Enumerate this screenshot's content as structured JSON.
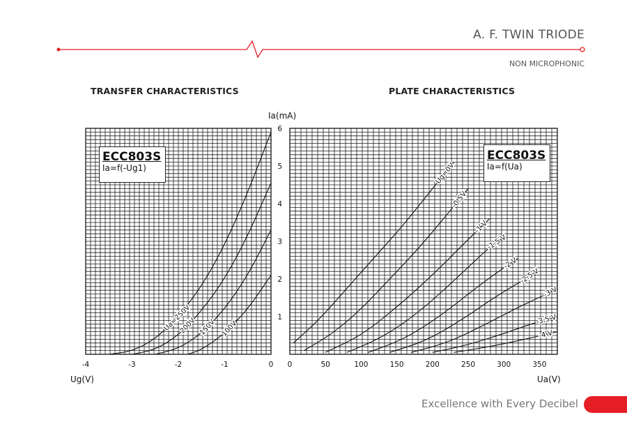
{
  "header": {
    "title": "A. F. TWIN TRIODE",
    "subtitle": "NON MICROPHONIC",
    "accent_color": "#e61e25"
  },
  "footer": {
    "tagline": "Excellence with Every Decibel"
  },
  "sections": {
    "transfer_title": "TRANSFER CHARACTERISTICS",
    "plate_title": "PLATE CHARACTERISTICS"
  },
  "chart_data": [
    {
      "type": "line",
      "title": "TRANSFER CHARACTERISTICS",
      "legend": {
        "name": "ECC803S",
        "equation": "Ia=f(-Ug1)"
      },
      "xlabel": "Ug(V)",
      "ylabel": "Ia(mA)",
      "xlim": [
        -4,
        0
      ],
      "ylim": [
        0,
        6
      ],
      "xticks": [
        -4,
        -3,
        -2,
        -1,
        0
      ],
      "yticks": [
        1,
        2,
        3,
        4,
        5,
        6
      ],
      "grid": true,
      "series": [
        {
          "name": "Ua=250V",
          "x": [
            -3.5,
            -3.0,
            -2.5,
            -2.0,
            -1.5,
            -1.0,
            -0.5,
            0.0
          ],
          "y": [
            0.0,
            0.08,
            0.4,
            1.0,
            1.8,
            2.9,
            4.3,
            5.9
          ]
        },
        {
          "name": "200V",
          "x": [
            -3.0,
            -2.5,
            -2.0,
            -1.5,
            -1.0,
            -0.5,
            0.0
          ],
          "y": [
            0.0,
            0.12,
            0.5,
            1.15,
            2.0,
            3.15,
            4.55
          ]
        },
        {
          "name": "150V",
          "x": [
            -2.5,
            -2.0,
            -1.5,
            -1.0,
            -0.5,
            0.0
          ],
          "y": [
            0.0,
            0.15,
            0.55,
            1.2,
            2.1,
            3.3
          ]
        },
        {
          "name": "100V",
          "x": [
            -1.8,
            -1.5,
            -1.0,
            -0.5,
            0.0
          ],
          "y": [
            0.0,
            0.12,
            0.55,
            1.2,
            2.1
          ]
        }
      ]
    },
    {
      "type": "line",
      "title": "PLATE CHARACTERISTICS",
      "legend": {
        "name": "ECC803S",
        "equation": "Ia=f(Ua)"
      },
      "xlabel": "Ua(V)",
      "ylabel": "Ia(mA)",
      "xlim": [
        0,
        375
      ],
      "ylim": [
        0,
        6
      ],
      "xticks": [
        0,
        50,
        100,
        150,
        200,
        250,
        300,
        350
      ],
      "yticks": [
        1,
        2,
        3,
        4,
        5,
        6
      ],
      "grid": true,
      "series": [
        {
          "name": "Ug=0V",
          "x": [
            5,
            40,
            80,
            120,
            160,
            200,
            230
          ],
          "y": [
            0.3,
            0.9,
            1.75,
            2.6,
            3.45,
            4.4,
            5.1
          ]
        },
        {
          "name": "-0.5V",
          "x": [
            20,
            60,
            100,
            140,
            180,
            220,
            250
          ],
          "y": [
            0.1,
            0.55,
            1.2,
            2.0,
            2.8,
            3.7,
            4.4
          ]
        },
        {
          "name": "-1 V",
          "x": [
            50,
            100,
            150,
            200,
            250,
            280
          ],
          "y": [
            0.05,
            0.5,
            1.25,
            2.1,
            3.05,
            3.6
          ]
        },
        {
          "name": "-1.5 V",
          "x": [
            80,
            130,
            180,
            230,
            280,
            300
          ],
          "y": [
            0.05,
            0.45,
            1.1,
            1.95,
            2.85,
            3.1
          ]
        },
        {
          "name": "-2 V",
          "x": [
            110,
            160,
            210,
            260,
            300,
            320
          ],
          "y": [
            0.05,
            0.4,
            1.0,
            1.75,
            2.3,
            2.55
          ]
        },
        {
          "name": "-2.5 V",
          "x": [
            140,
            190,
            240,
            290,
            330,
            345
          ],
          "y": [
            0.05,
            0.35,
            0.9,
            1.55,
            2.0,
            2.2
          ]
        },
        {
          "name": "-3 V",
          "x": [
            170,
            220,
            270,
            320,
            360,
            375
          ],
          "y": [
            0.05,
            0.3,
            0.75,
            1.25,
            1.6,
            1.75
          ]
        },
        {
          "name": "-3.5 V",
          "x": [
            200,
            250,
            300,
            345,
            375
          ],
          "y": [
            0.05,
            0.25,
            0.55,
            0.85,
            1.0
          ]
        },
        {
          "name": "-4 V",
          "x": [
            230,
            280,
            330,
            375
          ],
          "y": [
            0.05,
            0.2,
            0.4,
            0.6
          ]
        }
      ]
    }
  ]
}
